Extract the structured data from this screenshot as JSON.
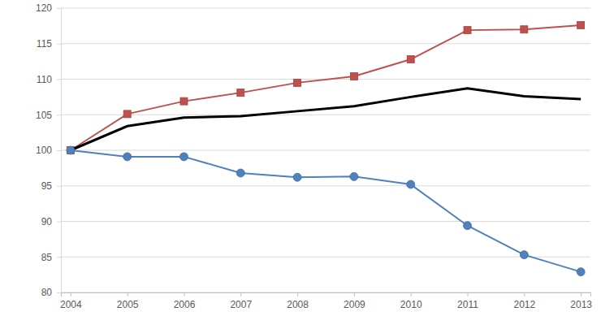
{
  "chart_data": {
    "type": "line",
    "categories": [
      "2004",
      "2005",
      "2006",
      "2007",
      "2008",
      "2009",
      "2010",
      "2011",
      "2012",
      "2013"
    ],
    "series": [
      {
        "color": "#c0504d",
        "marker": "square",
        "values": [
          100,
          105.1,
          106.9,
          108.1,
          109.5,
          110.4,
          112.8,
          116.9,
          117.0,
          117.6
        ]
      },
      {
        "color": "#000000",
        "marker": "none",
        "values": [
          100,
          103.4,
          104.6,
          104.8,
          105.5,
          106.2,
          107.5,
          108.7,
          107.6,
          107.2
        ]
      },
      {
        "color": "#4f81bd",
        "marker": "circle",
        "values": [
          100,
          99.1,
          99.1,
          96.8,
          96.2,
          96.3,
          95.2,
          89.4,
          85.3,
          82.9
        ]
      }
    ],
    "ylim": [
      80,
      120
    ],
    "yticks": [
      80,
      85,
      90,
      95,
      100,
      105,
      110,
      115,
      120
    ],
    "grid": true
  }
}
